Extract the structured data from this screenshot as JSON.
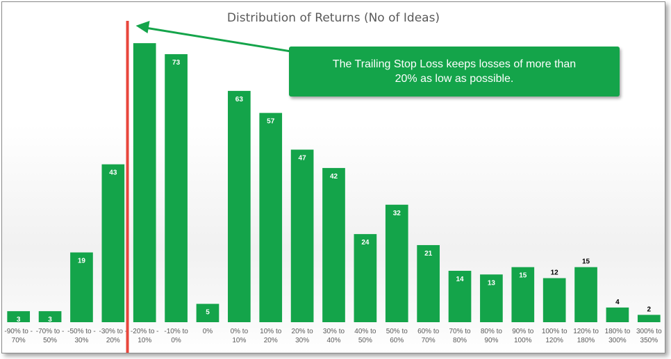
{
  "chart_data": {
    "type": "bar",
    "title": "Distribution of Returns (No of Ideas)",
    "xlabel": "",
    "ylabel": "",
    "ylim": [
      0,
      80
    ],
    "grid": false,
    "legend": "none",
    "categories": [
      [
        "-90% to -",
        "70%"
      ],
      [
        "-70% to -",
        "50%"
      ],
      [
        "-50% to -",
        "30%"
      ],
      [
        "-30% to -",
        "20%"
      ],
      [
        "-20% to -",
        "10%"
      ],
      [
        "-10% to",
        "0%"
      ],
      [
        "0%"
      ],
      [
        "0% to",
        "10%"
      ],
      [
        "10% to",
        "20%"
      ],
      [
        "20% to",
        "30%"
      ],
      [
        "30% to",
        "40%"
      ],
      [
        "40% to",
        "50%"
      ],
      [
        "50% to",
        "60%"
      ],
      [
        "60% to",
        "70%"
      ],
      [
        "70% to",
        "80%"
      ],
      [
        "80% to",
        "90%"
      ],
      [
        "90% to",
        "100%"
      ],
      [
        "100% to",
        "120%"
      ],
      [
        "120% to",
        "180%"
      ],
      [
        "180% to",
        "300%"
      ],
      [
        "300% to",
        "350%"
      ]
    ],
    "values": [
      3,
      3,
      19,
      43,
      76,
      73,
      5,
      63,
      57,
      47,
      42,
      24,
      32,
      21,
      14,
      13,
      15,
      12,
      15,
      4,
      2
    ],
    "data_labels": [
      "3",
      "3",
      "19",
      "43",
      "",
      "73",
      "5",
      "63",
      "57",
      "47",
      "42",
      "24",
      "32",
      "21",
      "14",
      "13",
      "15",
      "12",
      "15",
      "4",
      "2"
    ],
    "label_outside": [
      false,
      false,
      false,
      false,
      false,
      false,
      false,
      false,
      false,
      false,
      false,
      false,
      false,
      false,
      false,
      false,
      false,
      true,
      true,
      true,
      true
    ],
    "annotation": {
      "text": "The Trailing Stop Loss keeps losses of more than 20% as low as possible.",
      "marker_at_category_boundary": 4
    }
  },
  "colors": {
    "bar": "#14a44a",
    "bar_label_inside": "#ffffff",
    "bar_label_outside": "#000000",
    "marker_line": "#e8463c",
    "arrow": "#14a44a",
    "title": "#595959",
    "tick_label": "#595959"
  }
}
